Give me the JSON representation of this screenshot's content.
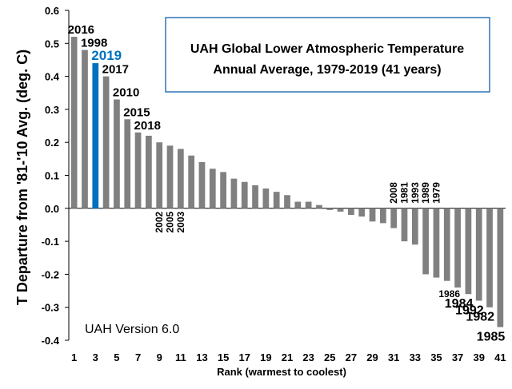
{
  "chart_data": {
    "type": "bar",
    "title": "UAH Global Lower Atmospheric Temperature Annual Average, 1979-2019 (41 years)",
    "title_lines": [
      "UAH Global Lower Atmospheric Temperature",
      "Annual Average, 1979-2019 (41 years)"
    ],
    "ylabel": "T Departure from '81-'10 Avg. (deg. C)",
    "xlabel": "Rank (warmest to coolest)",
    "annotation": "UAH Version 6.0",
    "ylim": [
      -0.4,
      0.6
    ],
    "yticks": [
      "0.6",
      "0.5",
      "0.4",
      "0.3",
      "0.2",
      "0.1",
      "0.0",
      "-0.1",
      "-0.2",
      "-0.3",
      "-0.4"
    ],
    "ytick_values": [
      0.6,
      0.5,
      0.4,
      0.3,
      0.2,
      0.1,
      0.0,
      -0.1,
      -0.2,
      -0.3,
      -0.4
    ],
    "xticks": [
      "1",
      "3",
      "5",
      "7",
      "9",
      "11",
      "13",
      "15",
      "17",
      "19",
      "21",
      "23",
      "25",
      "27",
      "29",
      "31",
      "33",
      "35",
      "37",
      "39",
      "41"
    ],
    "grid": false,
    "colors": {
      "bar": "#808080",
      "highlight": "#0070c0",
      "title_box_border": "#2e75b6",
      "text": "#000000"
    },
    "series": [
      {
        "values": [
          0.52,
          0.48,
          0.44,
          0.4,
          0.33,
          0.27,
          0.23,
          0.22,
          0.2,
          0.19,
          0.18,
          0.16,
          0.14,
          0.12,
          0.11,
          0.09,
          0.08,
          0.07,
          0.06,
          0.05,
          0.04,
          0.02,
          0.02,
          0.01,
          -0.005,
          -0.01,
          -0.02,
          -0.025,
          -0.04,
          -0.045,
          -0.06,
          -0.1,
          -0.11,
          -0.2,
          -0.21,
          -0.22,
          -0.24,
          -0.26,
          -0.28,
          -0.3,
          -0.36
        ]
      }
    ],
    "highlight_rank": 3,
    "year_labels": [
      {
        "rank": 1,
        "text": "2016",
        "style": "horizontal"
      },
      {
        "rank": 2,
        "text": "1998",
        "style": "horizontal"
      },
      {
        "rank": 3,
        "text": "2019",
        "style": "horizontal",
        "highlight": true
      },
      {
        "rank": 4,
        "text": "2017",
        "style": "horizontal"
      },
      {
        "rank": 5,
        "text": "2010",
        "style": "horizontal"
      },
      {
        "rank": 6,
        "text": "2015",
        "style": "horizontal"
      },
      {
        "rank": 7,
        "text": "2018",
        "style": "horizontal"
      },
      {
        "rank": 9,
        "text": "2002",
        "style": "vertical-below"
      },
      {
        "rank": 10,
        "text": "2005",
        "style": "vertical-below"
      },
      {
        "rank": 11,
        "text": "2003",
        "style": "vertical-below"
      },
      {
        "rank": 31,
        "text": "2008",
        "style": "vertical-above"
      },
      {
        "rank": 32,
        "text": "1981",
        "style": "vertical-above"
      },
      {
        "rank": 33,
        "text": "1993",
        "style": "vertical-above"
      },
      {
        "rank": 34,
        "text": "1989",
        "style": "vertical-above"
      },
      {
        "rank": 35,
        "text": "1979",
        "style": "vertical-above"
      },
      {
        "rank": 37,
        "text": "1986",
        "style": "below-small"
      },
      {
        "rank": 38,
        "text": "1984",
        "style": "below"
      },
      {
        "rank": 39,
        "text": "1992",
        "style": "below"
      },
      {
        "rank": 40,
        "text": "1982",
        "style": "below"
      },
      {
        "rank": 41,
        "text": "1985",
        "style": "below"
      }
    ]
  }
}
